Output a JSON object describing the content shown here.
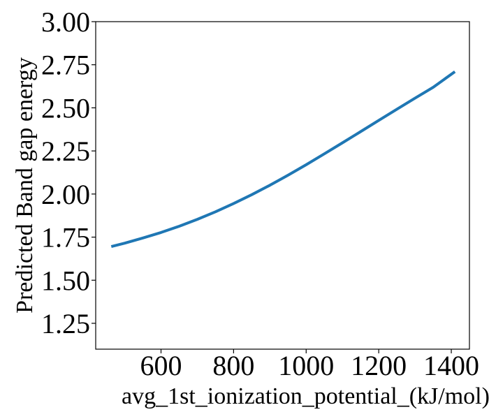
{
  "chart_data": {
    "type": "line",
    "title": "",
    "xlabel": "avg_1st_ionization_potential_(kJ/mol)",
    "ylabel": "Predicted Band gap energy",
    "xlim": [
      420,
      1450
    ],
    "ylim": [
      1.1,
      3.0
    ],
    "xticks": [
      600,
      800,
      1000,
      1200,
      1400
    ],
    "xtick_labels": [
      "600",
      "800",
      "1000",
      "1200",
      "1400"
    ],
    "yticks": [
      1.25,
      1.5,
      1.75,
      2.0,
      2.25,
      2.5,
      2.75,
      3.0
    ],
    "ytick_labels": [
      "1.25",
      "1.50",
      "1.75",
      "2.00",
      "2.25",
      "2.50",
      "2.75",
      "3.00"
    ],
    "grid": false,
    "series": [
      {
        "color": "#1f77b4",
        "x": [
          463,
          500,
          550,
          600,
          650,
          700,
          750,
          800,
          850,
          900,
          950,
          1000,
          1050,
          1100,
          1150,
          1200,
          1250,
          1300,
          1350,
          1410
        ],
        "y": [
          1.695,
          1.715,
          1.745,
          1.777,
          1.813,
          1.853,
          1.897,
          1.945,
          1.996,
          2.051,
          2.109,
          2.17,
          2.233,
          2.297,
          2.362,
          2.427,
          2.492,
          2.556,
          2.619,
          2.71
        ]
      }
    ]
  }
}
